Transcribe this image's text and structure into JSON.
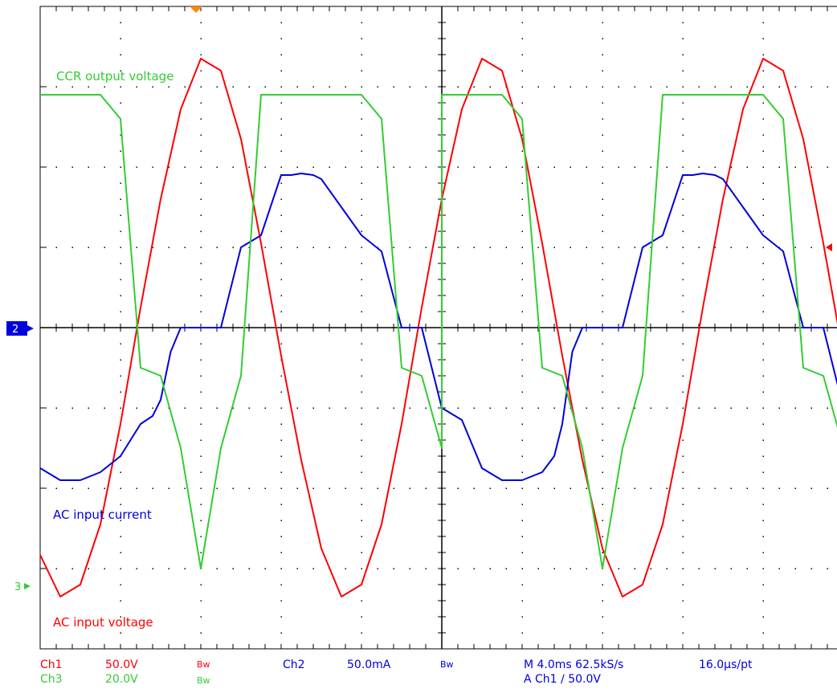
{
  "chart_data": {
    "type": "line",
    "title": "",
    "xlabel": "",
    "ylabel": "",
    "x_unit": "ms",
    "x_div": 4.0,
    "y_div_count": 8,
    "x_div_count": 10,
    "grid": true,
    "trace_labels": {
      "ccr": "CCR output voltage",
      "current": "AC input current",
      "voltage": "AC input voltage"
    },
    "series": [
      {
        "name": "AC input voltage",
        "channel": "Ch1",
        "color": "#ff0000",
        "scale": "50.0V",
        "ground_div": 0.0,
        "x_ms": [
          0,
          1,
          2,
          3,
          4,
          5,
          6,
          7,
          8,
          9,
          10,
          11,
          12,
          13,
          14,
          15,
          16,
          17,
          18,
          19,
          20,
          21,
          22,
          23,
          24,
          25,
          26,
          27,
          28,
          29,
          30,
          31,
          32,
          33,
          34,
          35,
          36,
          37,
          38,
          39,
          40
        ],
        "y_div": [
          -2.83,
          -3.35,
          -3.2,
          -2.45,
          -1.2,
          0.25,
          1.6,
          2.72,
          3.35,
          3.2,
          2.35,
          1.05,
          -0.35,
          -1.65,
          -2.75,
          -3.35,
          -3.2,
          -2.45,
          -1.2,
          0.25,
          1.6,
          2.72,
          3.35,
          3.2,
          2.35,
          1.05,
          -0.35,
          -1.65,
          -2.75,
          -3.35,
          -3.2,
          -2.45,
          -1.2,
          0.25,
          1.6,
          2.72,
          3.35,
          3.2,
          2.35,
          1.05,
          -0.35
        ]
      },
      {
        "name": "AC input current",
        "channel": "Ch2",
        "color": "#0000dd",
        "scale": "50.0mA",
        "ground_div": 0.0,
        "x_ms": [
          0,
          1,
          2,
          3,
          4,
          5,
          5.6,
          6,
          6.5,
          7,
          8,
          9,
          10,
          11,
          12,
          12.5,
          13,
          13.6,
          14,
          15,
          16,
          17,
          18,
          19,
          20,
          21,
          22,
          23,
          24,
          25,
          25.6,
          26,
          26.5,
          27,
          28,
          29,
          30,
          31,
          32,
          32.5,
          33,
          33.6,
          34,
          35,
          36,
          37,
          38,
          39,
          40
        ],
        "y_div": [
          -1.75,
          -1.9,
          -1.9,
          -1.8,
          -1.6,
          -1.2,
          -1.1,
          -0.9,
          -0.3,
          0.0,
          0.0,
          0.0,
          1.0,
          1.15,
          1.9,
          1.9,
          1.92,
          1.9,
          1.85,
          1.5,
          1.15,
          0.95,
          0.0,
          0.0,
          -1.0,
          -1.15,
          -1.75,
          -1.9,
          -1.9,
          -1.8,
          -1.6,
          -1.2,
          -0.3,
          0.0,
          0.0,
          0.0,
          1.0,
          1.15,
          1.9,
          1.9,
          1.92,
          1.9,
          1.85,
          1.5,
          1.15,
          0.95,
          0.0,
          0.0,
          -1.0
        ]
      },
      {
        "name": "CCR output voltage",
        "channel": "Ch3",
        "color": "#33cc33",
        "scale": "20.0V",
        "ground_div": -3.2,
        "x_ms": [
          0,
          1,
          2,
          3,
          4,
          5,
          6,
          7,
          8,
          9,
          10,
          11,
          12,
          13,
          14,
          15,
          16,
          17,
          18,
          19,
          20
        ],
        "y_div": [
          2.9,
          2.9,
          2.9,
          2.9,
          2.6,
          -0.5,
          -0.6,
          -1.5,
          -3.0,
          -1.5,
          -0.6,
          2.9,
          2.9,
          2.9,
          2.9,
          2.9,
          2.9,
          2.6,
          -0.5,
          -0.6,
          -1.5
        ]
      }
    ]
  },
  "markers": {
    "ch2_marker": "2",
    "ch3_marker": "3"
  },
  "status": {
    "ch1_label": "Ch1",
    "ch1_scale": "50.0V",
    "ch3_label": "Ch3",
    "ch3_scale": "20.0V",
    "bw1": "Bw",
    "bw2": "Bw",
    "ch2_label": "Ch2",
    "ch2_scale": "50.0mA",
    "bw3": "Bw",
    "timebase": "M 4.0ms 62.5kS/s",
    "sample_interval": "16.0µs/pt",
    "trigger": "A  Ch1  ∕  50.0V"
  }
}
